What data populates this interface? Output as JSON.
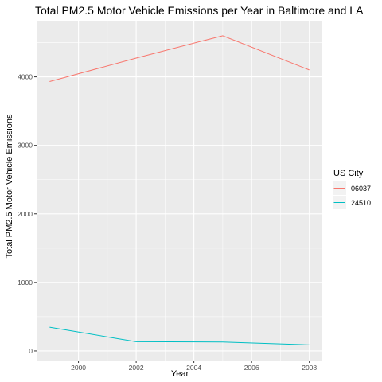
{
  "chart_data": {
    "type": "line",
    "title": "Total PM2.5 Motor Vehicle Emissions per Year in Baltimore and LA",
    "xlabel": "Year",
    "ylabel": "Total PM2.5 Motor Vehicle Emissions",
    "x": [
      1999,
      2002,
      2005,
      2008
    ],
    "xlim": [
      1998.55,
      2008.45
    ],
    "ylim": [
      -140,
      4820
    ],
    "xticks": [
      2000,
      2002,
      2004,
      2006,
      2008
    ],
    "yticks": [
      0,
      1000,
      2000,
      3000,
      4000
    ],
    "grid": true,
    "legend": {
      "title": "US City",
      "placement": "right"
    },
    "series": [
      {
        "name": "06037",
        "color": "#F8766D",
        "values": [
          3931,
          4274,
          4601,
          4101
        ]
      },
      {
        "name": "24510",
        "color": "#00BFC4",
        "values": [
          347,
          134,
          130,
          88
        ]
      }
    ]
  },
  "theme": {
    "panel_bg": "#EBEBEB",
    "grid_major": "#FFFFFF",
    "tick_color": "#333333"
  }
}
